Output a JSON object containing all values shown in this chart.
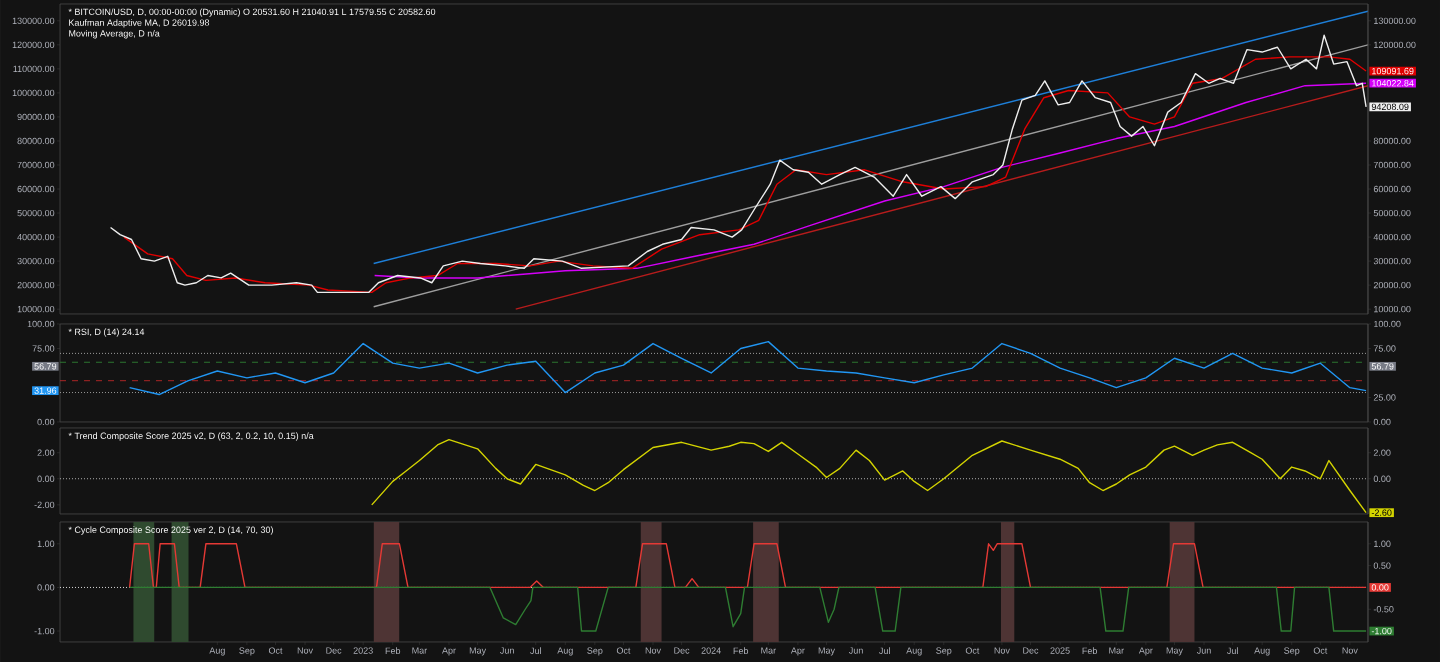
{
  "chart_data": [
    {
      "type": "line",
      "title": "* BITCOIN/USD, D, 00:00-00:00 (Dynamic) O 20531.60 H 21040.91 L 17579.55 C 20582.60",
      "subtitle": "Kaufman Adaptive MA, D 26019.98",
      "annotations": [
        "Moving Average, D n/a",
        {
          "text": "109091.69",
          "x": "2025-11-20",
          "y": 109091.69
        },
        {
          "text": "104022.84",
          "x": "2025-11-20",
          "y": 104022.84
        },
        {
          "text": "94208.09",
          "x": "2025-11-20",
          "y": 94208.09
        }
      ],
      "xlim": [
        "2022-02-17",
        "2025-11-20"
      ],
      "ylim": [
        8000,
        137000
      ],
      "tick_labels": "y",
      "yticks": [
        {
          "value": 10000,
          "label": "10000.00"
        },
        {
          "value": 20000,
          "label": "20000.00"
        },
        {
          "value": 30000,
          "label": "30000.00"
        },
        {
          "value": 40000,
          "label": "40000.00"
        },
        {
          "value": 50000,
          "label": "50000.00"
        },
        {
          "value": 60000,
          "label": "60000.00"
        },
        {
          "value": 70000,
          "label": "70000.00"
        },
        {
          "value": 80000,
          "label": "80000.00"
        },
        {
          "value": 90000,
          "label": "90000.00"
        },
        {
          "value": 100000,
          "label": "100000.00"
        },
        {
          "value": 110000,
          "label": "110000.00"
        },
        {
          "value": 120000,
          "label": "120000.00"
        },
        {
          "value": 130000,
          "label": "130000.00"
        }
      ],
      "y2lim": [
        8000,
        137000
      ],
      "y2ticks": [
        {
          "value": 10000,
          "label": "10000.00"
        },
        {
          "value": 20000,
          "label": "20000.00"
        },
        {
          "value": 30000,
          "label": "30000.00"
        },
        {
          "value": 40000,
          "label": "40000.00"
        },
        {
          "value": 50000,
          "label": "50000.00"
        },
        {
          "value": 60000,
          "label": "60000.00"
        },
        {
          "value": 70000,
          "label": "70000.00"
        },
        {
          "value": 80000,
          "label": "80000.00"
        },
        {
          "value": 120000,
          "label": "120000.00"
        },
        {
          "value": 130000,
          "label": "130000.00"
        }
      ],
      "series": [
        {
          "color": "#1e7fd8",
          "x": [
            "2023-01-12",
            "2025-11-20"
          ],
          "values": [
            29000,
            134000
          ]
        },
        {
          "color": "#9e9e9e",
          "x": [
            "2023-01-12",
            "2025-11-20"
          ],
          "values": [
            11000,
            120000
          ]
        },
        {
          "color": "#b71c1c",
          "x": [
            "2023-06-10",
            "2025-11-20"
          ],
          "values": [
            10000,
            103000
          ]
        },
        {
          "color": "#d500f9",
          "x": [
            "2023-01-13",
            "2023-03-01",
            "2023-05-01",
            "2023-08-01",
            "2023-10-15",
            "2023-12-15",
            "2024-02-15",
            "2024-04-15",
            "2024-07-01",
            "2024-09-01",
            "2024-11-01",
            "2025-01-01",
            "2025-03-01",
            "2025-05-01",
            "2025-07-15",
            "2025-09-15",
            "2025-11-18"
          ],
          "values": [
            24000,
            23000,
            23000,
            26000,
            27000,
            32000,
            37000,
            45000,
            55000,
            61000,
            69000,
            75000,
            81000,
            86000,
            96000,
            103000,
            104022.84
          ]
        },
        {
          "color": "#e00000",
          "x": [
            "2022-04-25",
            "2022-05-20",
            "2022-06-15",
            "2022-06-30",
            "2022-07-20",
            "2022-08-20",
            "2022-09-20",
            "2022-11-05",
            "2022-11-25",
            "2023-01-10",
            "2023-01-25",
            "2023-02-20",
            "2023-03-20",
            "2023-04-10",
            "2023-05-20",
            "2023-06-25",
            "2023-07-25",
            "2023-08-30",
            "2023-10-10",
            "2023-11-10",
            "2023-12-20",
            "2024-01-30",
            "2024-02-20",
            "2024-03-10",
            "2024-03-30",
            "2024-05-01",
            "2024-06-10",
            "2024-07-20",
            "2024-09-01",
            "2024-10-15",
            "2024-11-05",
            "2024-11-25",
            "2024-12-15",
            "2025-01-10",
            "2025-02-20",
            "2025-03-15",
            "2025-04-10",
            "2025-05-01",
            "2025-05-20",
            "2025-06-20",
            "2025-07-25",
            "2025-08-30",
            "2025-10-10",
            "2025-11-01",
            "2025-11-18"
          ],
          "values": [
            40000,
            33000,
            31000,
            24000,
            22000,
            23000,
            21000,
            20000,
            18000,
            17000,
            21000,
            23000,
            24000,
            29000,
            29000,
            28000,
            30000,
            28000,
            27000,
            35000,
            41000,
            43000,
            47000,
            62000,
            68000,
            66000,
            68000,
            63000,
            60000,
            61000,
            65000,
            85000,
            98000,
            101000,
            100000,
            90000,
            87000,
            90000,
            104000,
            106000,
            114000,
            115000,
            115000,
            114000,
            109091.69
          ]
        },
        {
          "color": "#eeeeee",
          "x": [
            "2022-04-11",
            "2022-04-21",
            "2022-05-03",
            "2022-05-13",
            "2022-05-27",
            "2022-06-10",
            "2022-06-20",
            "2022-06-28",
            "2022-07-10",
            "2022-07-22",
            "2022-08-05",
            "2022-08-15",
            "2022-09-03",
            "2022-09-27",
            "2022-10-23",
            "2022-11-08",
            "2022-11-14",
            "2022-12-12",
            "2023-01-07",
            "2023-01-17",
            "2023-02-06",
            "2023-03-02",
            "2023-03-14",
            "2023-03-26",
            "2023-04-15",
            "2023-05-04",
            "2023-05-30",
            "2023-06-19",
            "2023-06-29",
            "2023-07-29",
            "2023-08-18",
            "2023-10-06",
            "2023-10-26",
            "2023-11-11",
            "2023-12-01",
            "2023-12-11",
            "2024-01-04",
            "2024-01-23",
            "2024-02-02",
            "2024-02-16",
            "2024-03-03",
            "2024-03-13",
            "2024-03-27",
            "2024-04-12",
            "2024-04-26",
            "2024-05-15",
            "2024-05-31",
            "2024-06-20",
            "2024-07-10",
            "2024-07-24",
            "2024-08-09",
            "2024-08-29",
            "2024-09-13",
            "2024-10-01",
            "2024-10-23",
            "2024-11-02",
            "2024-11-12",
            "2024-11-22",
            "2024-12-06",
            "2024-12-16",
            "2024-12-30",
            "2025-01-11",
            "2025-01-24",
            "2025-02-07",
            "2025-02-23",
            "2025-03-05",
            "2025-03-17",
            "2025-03-29",
            "2025-04-10",
            "2025-04-24",
            "2025-05-08",
            "2025-05-23",
            "2025-06-06",
            "2025-06-18",
            "2025-07-02",
            "2025-07-16",
            "2025-08-01",
            "2025-08-17",
            "2025-08-31",
            "2025-09-16",
            "2025-09-27",
            "2025-10-05",
            "2025-10-15",
            "2025-10-29",
            "2025-11-08",
            "2025-11-14",
            "2025-11-18"
          ],
          "values": [
            44000,
            41000,
            39000,
            31000,
            30000,
            32000,
            21000,
            20000,
            21000,
            24000,
            23000,
            25000,
            20000,
            20000,
            21000,
            20000,
            17000,
            17000,
            17000,
            21000,
            24000,
            23000,
            21000,
            28000,
            30000,
            29000,
            28000,
            27000,
            31000,
            30000,
            27000,
            28000,
            34000,
            37000,
            39000,
            44000,
            43000,
            40000,
            43000,
            52000,
            62000,
            72000,
            68000,
            67000,
            62000,
            66000,
            69000,
            65000,
            57000,
            66000,
            57000,
            61000,
            56000,
            63000,
            66000,
            70000,
            85000,
            97000,
            99000,
            105000,
            95000,
            96000,
            105000,
            98000,
            96000,
            86000,
            82000,
            86000,
            78000,
            92000,
            96000,
            108000,
            104000,
            106000,
            104000,
            118000,
            117000,
            119000,
            110000,
            114000,
            110000,
            124000,
            112000,
            113000,
            103000,
            104000,
            94208.09
          ]
        }
      ]
    },
    {
      "type": "line",
      "title": "* RSI, D (14) 24.14",
      "annotations": [
        {
          "text": "56.79",
          "x": "2022-02-17",
          "y": 56.79
        },
        {
          "text": "31.96",
          "x": "2022-02-17",
          "y": 31.96
        },
        {
          "text": "56.79",
          "x": "2025-11-20",
          "y": 56.79
        }
      ],
      "xlim": [
        "2022-02-17",
        "2025-11-20"
      ],
      "ylim": [
        0,
        100
      ],
      "tick_labels": "y",
      "yticks": [
        {
          "value": 0,
          "label": "0.00"
        },
        {
          "value": 75,
          "label": "75.00"
        },
        {
          "value": 100,
          "label": "100.00"
        }
      ],
      "y2lim": [
        0,
        100
      ],
      "y2ticks": [
        {
          "value": 0,
          "label": "0.00"
        },
        {
          "value": 25,
          "label": "25.00"
        },
        {
          "value": 75,
          "label": "75.00"
        },
        {
          "value": 100,
          "label": "100.00"
        }
      ],
      "ref_lines": [
        {
          "axis": "y",
          "value": 70,
          "color": "#9e9e9e",
          "line_style": "dotted"
        },
        {
          "axis": "y",
          "value": 30,
          "color": "#9e9e9e",
          "line_style": "dotted"
        },
        {
          "axis": "y",
          "value": 61,
          "color": "#2e7d32",
          "line_style": "dashed"
        },
        {
          "axis": "y",
          "value": 42,
          "color": "#c62828",
          "line_style": "dashed"
        }
      ],
      "series": [
        {
          "color": "#2196f3",
          "x": [
            "2022-05-01",
            "2022-06-01",
            "2022-07-01",
            "2022-08-01",
            "2022-09-01",
            "2022-10-01",
            "2022-11-01",
            "2022-12-01",
            "2023-01-01",
            "2023-02-01",
            "2023-03-01",
            "2023-04-01",
            "2023-05-01",
            "2023-06-01",
            "2023-07-01",
            "2023-08-01",
            "2023-09-01",
            "2023-10-01",
            "2023-11-01",
            "2023-12-01",
            "2024-01-01",
            "2024-02-01",
            "2024-03-01",
            "2024-04-01",
            "2024-05-01",
            "2024-06-01",
            "2024-07-01",
            "2024-08-01",
            "2024-09-01",
            "2024-10-01",
            "2024-11-01",
            "2024-12-01",
            "2025-01-01",
            "2025-02-01",
            "2025-03-01",
            "2025-04-01",
            "2025-05-01",
            "2025-06-01",
            "2025-07-01",
            "2025-08-01",
            "2025-09-01",
            "2025-10-01",
            "2025-11-01",
            "2025-11-18"
          ],
          "values": [
            35,
            28,
            42,
            52,
            45,
            50,
            40,
            50,
            80,
            60,
            55,
            60,
            50,
            58,
            62,
            30,
            50,
            58,
            80,
            65,
            50,
            75,
            82,
            55,
            52,
            50,
            45,
            40,
            48,
            55,
            80,
            70,
            55,
            45,
            35,
            45,
            65,
            55,
            70,
            55,
            50,
            60,
            35,
            31.96
          ]
        }
      ]
    },
    {
      "type": "line",
      "title": "* Trend Composite Score 2025 v2, D (63, 2, 0.2, 10, 0.15) n/a",
      "annotations": [
        {
          "text": "-2.60",
          "x": "2025-11-20",
          "y": -2.6
        }
      ],
      "xlim": [
        "2022-02-17",
        "2025-11-20"
      ],
      "ylim": [
        -2.7,
        3.9
      ],
      "tick_labels": "y",
      "yticks": [
        {
          "value": -2,
          "label": "-2.00"
        },
        {
          "value": 0,
          "label": "0.00"
        },
        {
          "value": 2,
          "label": "2.00"
        }
      ],
      "y2lim": [
        -2.7,
        3.9
      ],
      "y2ticks": [
        {
          "value": 0,
          "label": "0.00"
        },
        {
          "value": 2,
          "label": "2.00"
        }
      ],
      "ref_lines": [
        {
          "axis": "y",
          "value": 0,
          "color": "#bdbdbd",
          "line_style": "dotted"
        }
      ],
      "series": [
        {
          "color": "#d4d400",
          "x": [
            "2023-01-10",
            "2023-02-01",
            "2023-02-15",
            "2023-03-01",
            "2023-03-20",
            "2023-04-01",
            "2023-05-01",
            "2023-05-20",
            "2023-06-01",
            "2023-06-15",
            "2023-07-01",
            "2023-08-01",
            "2023-08-20",
            "2023-09-01",
            "2023-09-15",
            "2023-10-01",
            "2023-11-01",
            "2023-12-01",
            "2024-01-01",
            "2024-01-20",
            "2024-02-01",
            "2024-02-15",
            "2024-03-01",
            "2024-03-15",
            "2024-04-01",
            "2024-04-20",
            "2024-05-01",
            "2024-05-15",
            "2024-06-01",
            "2024-06-15",
            "2024-07-01",
            "2024-07-20",
            "2024-08-01",
            "2024-08-15",
            "2024-09-01",
            "2024-10-01",
            "2024-11-01",
            "2024-12-01",
            "2025-01-01",
            "2025-01-20",
            "2025-02-01",
            "2025-02-15",
            "2025-03-01",
            "2025-03-15",
            "2025-04-01",
            "2025-04-20",
            "2025-05-01",
            "2025-05-20",
            "2025-06-01",
            "2025-06-15",
            "2025-07-01",
            "2025-07-20",
            "2025-08-01",
            "2025-08-20",
            "2025-09-01",
            "2025-09-15",
            "2025-10-01",
            "2025-10-10",
            "2025-11-01",
            "2025-11-18"
          ],
          "values": [
            -2.0,
            -0.2,
            0.6,
            1.4,
            2.6,
            3.0,
            2.3,
            0.8,
            0.0,
            -0.4,
            1.1,
            0.3,
            -0.5,
            -0.9,
            -0.3,
            0.7,
            2.4,
            2.8,
            2.2,
            2.5,
            2.8,
            2.7,
            2.1,
            2.8,
            1.9,
            0.9,
            0.1,
            0.8,
            2.2,
            1.4,
            -0.1,
            0.6,
            -0.2,
            -0.9,
            0.0,
            1.8,
            2.9,
            2.2,
            1.5,
            0.8,
            -0.3,
            -0.9,
            -0.4,
            0.3,
            0.9,
            2.2,
            2.5,
            1.8,
            2.2,
            2.6,
            2.8,
            2.0,
            1.5,
            0.0,
            0.9,
            0.6,
            0.0,
            1.4,
            -0.9,
            -2.6
          ]
        }
      ]
    },
    {
      "type": "line",
      "title": "* Cycle Composite Score 2025 ver 2, D (14, 70, 30)",
      "annotations": [
        {
          "text": "0.00",
          "x": "2025-11-20",
          "y": 0
        },
        {
          "text": "-1.00",
          "x": "2025-11-20",
          "y": -1
        }
      ],
      "xlim": [
        "2022-02-17",
        "2025-11-20"
      ],
      "ylim": [
        -1.25,
        1.5
      ],
      "yticks": [
        {
          "value": -1,
          "label": "-1.00"
        },
        {
          "value": 0,
          "label": "0.00"
        },
        {
          "value": 1,
          "label": "1.00"
        }
      ],
      "y2lim": [
        -1.25,
        1.5
      ],
      "y2ticks": [
        {
          "value": -0.5,
          "label": "-0.50"
        },
        {
          "value": 0.5,
          "label": "0.50"
        },
        {
          "value": 1,
          "label": "1.00"
        }
      ],
      "xticks": [
        {
          "value": "2022-08-01",
          "label": "Aug"
        },
        {
          "value": "2022-09-01",
          "label": "Sep"
        },
        {
          "value": "2022-10-01",
          "label": "Oct"
        },
        {
          "value": "2022-11-01",
          "label": "Nov"
        },
        {
          "value": "2022-12-01",
          "label": "Dec"
        },
        {
          "value": "2023-01-01",
          "label": "2023"
        },
        {
          "value": "2023-02-01",
          "label": "Feb"
        },
        {
          "value": "2023-03-01",
          "label": "Mar"
        },
        {
          "value": "2023-04-01",
          "label": "Apr"
        },
        {
          "value": "2023-05-01",
          "label": "May"
        },
        {
          "value": "2023-06-01",
          "label": "Jun"
        },
        {
          "value": "2023-07-01",
          "label": "Jul"
        },
        {
          "value": "2023-08-01",
          "label": "Aug"
        },
        {
          "value": "2023-09-01",
          "label": "Sep"
        },
        {
          "value": "2023-10-01",
          "label": "Oct"
        },
        {
          "value": "2023-11-01",
          "label": "Nov"
        },
        {
          "value": "2023-12-01",
          "label": "Dec"
        },
        {
          "value": "2024-01-01",
          "label": "2024"
        },
        {
          "value": "2024-02-01",
          "label": "Feb"
        },
        {
          "value": "2024-03-01",
          "label": "Mar"
        },
        {
          "value": "2024-04-01",
          "label": "Apr"
        },
        {
          "value": "2024-05-01",
          "label": "May"
        },
        {
          "value": "2024-06-01",
          "label": "Jun"
        },
        {
          "value": "2024-07-01",
          "label": "Jul"
        },
        {
          "value": "2024-08-01",
          "label": "Aug"
        },
        {
          "value": "2024-09-01",
          "label": "Sep"
        },
        {
          "value": "2024-10-01",
          "label": "Oct"
        },
        {
          "value": "2024-11-01",
          "label": "Nov"
        },
        {
          "value": "2024-12-01",
          "label": "Dec"
        },
        {
          "value": "2025-01-01",
          "label": "2025"
        },
        {
          "value": "2025-02-01",
          "label": "Feb"
        },
        {
          "value": "2025-03-01",
          "label": "Mar"
        },
        {
          "value": "2025-04-01",
          "label": "Apr"
        },
        {
          "value": "2025-05-01",
          "label": "May"
        },
        {
          "value": "2025-06-01",
          "label": "Jun"
        },
        {
          "value": "2025-07-01",
          "label": "Jul"
        },
        {
          "value": "2025-08-01",
          "label": "Aug"
        },
        {
          "value": "2025-09-01",
          "label": "Sep"
        },
        {
          "value": "2025-10-01",
          "label": "Oct"
        },
        {
          "value": "2025-11-01",
          "label": "Nov"
        }
      ],
      "ref_lines": [
        {
          "axis": "y",
          "value": 0,
          "color": "#e0e0e0",
          "line_style": "dotted"
        }
      ],
      "bands": [
        {
          "axis": "x",
          "from": "2022-05-05",
          "to": "2022-05-27",
          "color": "#2f4a2f"
        },
        {
          "axis": "x",
          "from": "2022-06-14",
          "to": "2022-07-02",
          "color": "#2f4a2f"
        },
        {
          "axis": "x",
          "from": "2023-01-12",
          "to": "2023-02-08",
          "color": "#4e3434"
        },
        {
          "axis": "x",
          "from": "2023-10-19",
          "to": "2023-11-10",
          "color": "#4e3434"
        },
        {
          "axis": "x",
          "from": "2024-02-14",
          "to": "2024-03-12",
          "color": "#4e3434"
        },
        {
          "axis": "x",
          "from": "2024-10-31",
          "to": "2024-11-14",
          "color": "#4e3434"
        },
        {
          "axis": "x",
          "from": "2025-04-26",
          "to": "2025-05-22",
          "color": "#4e3434"
        }
      ],
      "series": [
        {
          "color": "#e53935",
          "x": [
            "2022-05-01",
            "2022-05-06",
            "2022-05-21",
            "2022-05-26",
            "2022-05-29",
            "2022-06-02",
            "2022-06-17",
            "2022-06-22",
            "2022-07-14",
            "2022-07-20",
            "2022-08-21",
            "2022-08-30",
            "2023-01-15",
            "2023-01-21",
            "2023-02-08",
            "2023-02-17",
            "2023-06-25",
            "2023-07-02",
            "2023-07-09",
            "2023-10-14",
            "2023-10-21",
            "2023-11-15",
            "2023-11-24",
            "2023-12-05",
            "2023-12-12",
            "2023-12-19",
            "2024-02-08",
            "2024-02-15",
            "2024-03-10",
            "2024-03-19",
            "2024-10-12",
            "2024-10-18",
            "2024-10-23",
            "2024-10-27",
            "2024-11-22",
            "2024-12-01",
            "2025-04-23",
            "2025-04-30",
            "2025-05-22",
            "2025-05-31",
            "2025-11-18"
          ],
          "values": [
            0,
            1,
            1,
            0,
            0,
            1,
            1,
            0,
            0,
            1,
            1,
            0,
            0,
            1,
            1,
            0,
            0,
            0.15,
            0,
            0,
            1,
            1,
            0,
            0,
            0.2,
            0,
            0,
            1,
            1,
            0,
            0,
            1,
            0.85,
            1,
            1,
            0,
            0,
            1,
            1,
            0,
            0
          ]
        },
        {
          "color": "#2e7d32",
          "x": [
            "2022-05-01",
            "2023-05-14",
            "2023-05-28",
            "2023-06-10",
            "2023-06-20",
            "2023-06-26",
            "2023-06-28",
            "2023-08-14",
            "2023-08-18",
            "2023-09-02",
            "2023-09-15",
            "2024-01-16",
            "2024-01-24",
            "2024-02-01",
            "2024-02-05",
            "2024-04-24",
            "2024-05-03",
            "2024-05-09",
            "2024-05-14",
            "2024-06-21",
            "2024-06-29",
            "2024-07-12",
            "2024-07-18",
            "2025-02-12",
            "2025-02-18",
            "2025-03-08",
            "2025-03-14",
            "2025-08-16",
            "2025-08-21",
            "2025-08-31",
            "2025-09-04",
            "2025-10-10",
            "2025-10-15",
            "2025-11-18"
          ],
          "values": [
            0,
            0,
            -0.7,
            -0.85,
            -0.5,
            -0.3,
            0,
            0,
            -1,
            -1,
            0,
            0,
            -0.9,
            -0.6,
            0,
            0,
            -0.8,
            -0.5,
            0,
            0,
            -1,
            -1,
            0,
            0,
            -1,
            -1,
            0,
            0,
            -1,
            -1,
            0,
            0,
            -1,
            -1
          ]
        }
      ]
    }
  ]
}
